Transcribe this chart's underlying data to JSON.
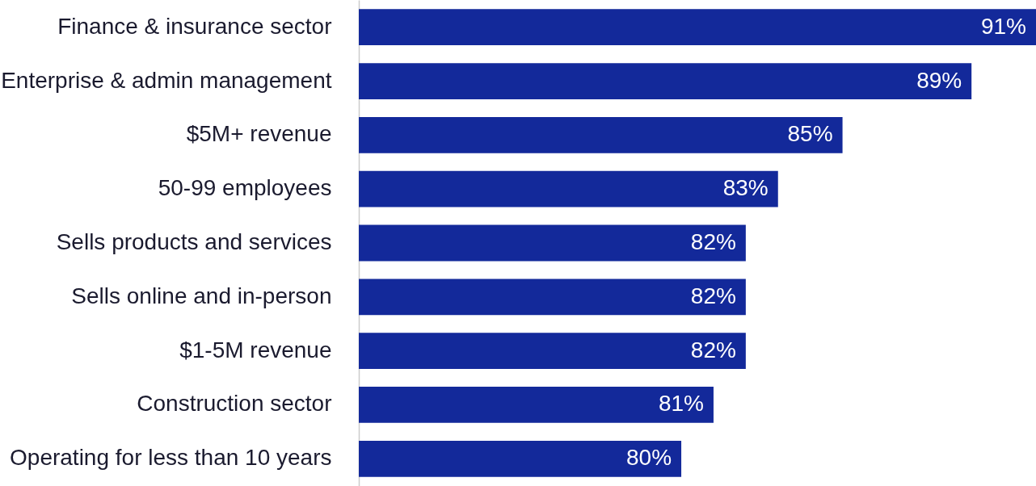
{
  "chart_data": {
    "type": "bar",
    "orientation": "horizontal",
    "categories": [
      "Finance & insurance sector",
      "Enterprise & admin management",
      "$5M+ revenue",
      "50-99 employees",
      "Sells products and services",
      "Sells online and in-person",
      "$1-5M revenue",
      "Construction sector",
      "Operating for less than 10 years"
    ],
    "values": [
      91,
      89,
      85,
      83,
      82,
      82,
      82,
      81,
      80
    ],
    "value_labels": [
      "91%",
      "89%",
      "85%",
      "83%",
      "82%",
      "82%",
      "82%",
      "81%",
      "80%"
    ],
    "color": "#13299a",
    "xlim": [
      70,
      91
    ],
    "tick_labels": "y"
  }
}
